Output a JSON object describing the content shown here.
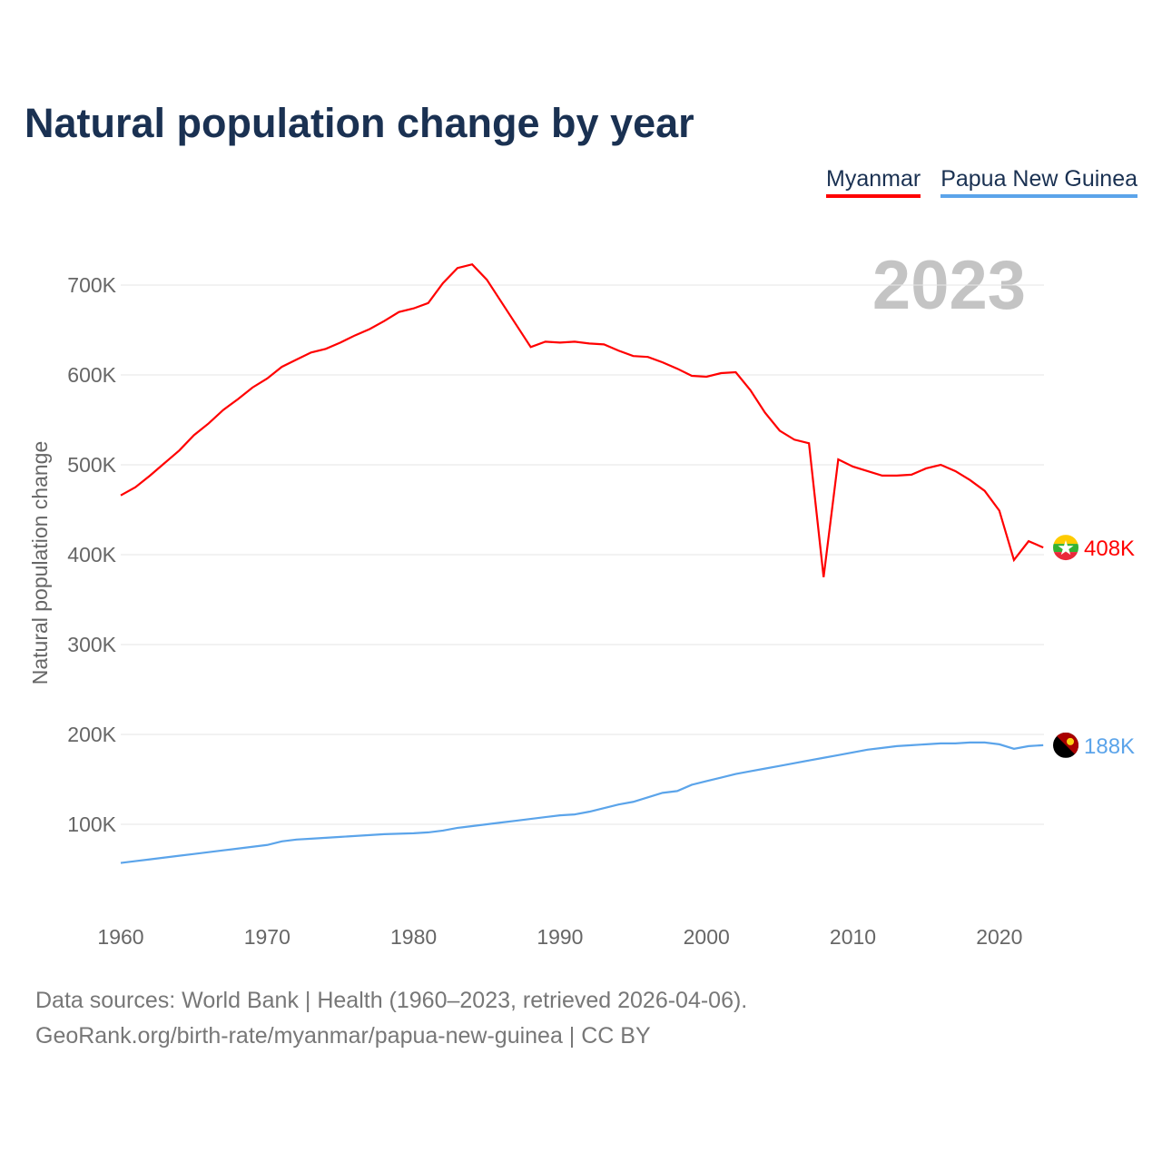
{
  "title": "Natural population change by year",
  "legend": [
    {
      "name": "Myanmar",
      "color": "#ff0000"
    },
    {
      "name": "Papua New Guinea",
      "color": "#5ba4ea"
    }
  ],
  "year_label": "2023",
  "footer": {
    "line1": "Data sources: World Bank | Health (1960–2023, retrieved 2026-04-06).",
    "line2": "GeoRank.org/birth-rate/myanmar/papua-new-guinea | CC BY"
  },
  "chart_data": {
    "type": "line",
    "title": "Natural population change by year",
    "xlabel": "",
    "ylabel": "Natural population change",
    "xlim": [
      1960,
      2023
    ],
    "ylim": [
      0,
      750000
    ],
    "xticks": [
      "1960",
      "1970",
      "1980",
      "1990",
      "2000",
      "2010",
      "2020"
    ],
    "yticks": [
      {
        "v": 100000,
        "label": "100K"
      },
      {
        "v": 200000,
        "label": "200K"
      },
      {
        "v": 300000,
        "label": "300K"
      },
      {
        "v": 400000,
        "label": "400K"
      },
      {
        "v": 500000,
        "label": "500K"
      },
      {
        "v": 600000,
        "label": "600K"
      },
      {
        "v": 700000,
        "label": "700K"
      }
    ],
    "x_start": 1960,
    "series": [
      {
        "name": "Myanmar",
        "color": "#ff0000",
        "end_label": "408K",
        "values": [
          466,
          475,
          488,
          502,
          516,
          533,
          546,
          561,
          573,
          586,
          596,
          609,
          617,
          625,
          629,
          636,
          644,
          651,
          660,
          670,
          674,
          680,
          702,
          719,
          723,
          706,
          681,
          656,
          631,
          637,
          636,
          637,
          635,
          634,
          627,
          621,
          620,
          614,
          607,
          599,
          598,
          602,
          603,
          583,
          558,
          538,
          528,
          524,
          375,
          506,
          498,
          493,
          488,
          488,
          489,
          496,
          500,
          493,
          483,
          471,
          449,
          394,
          415,
          408
        ]
      },
      {
        "name": "Papua New Guinea",
        "color": "#5ba4ea",
        "end_label": "188K",
        "values": [
          57,
          59,
          61,
          63,
          65,
          67,
          69,
          71,
          73,
          75,
          77,
          81,
          83,
          84,
          85,
          86,
          87,
          88,
          89,
          89.5,
          90,
          91,
          93,
          96,
          98,
          100,
          102,
          104,
          106,
          108,
          110,
          111,
          114,
          118,
          122,
          125,
          130,
          135,
          137,
          144,
          148,
          152,
          156,
          159,
          162,
          165,
          168,
          171,
          174,
          177,
          180,
          183,
          185,
          187,
          188,
          189,
          190,
          190,
          191,
          191,
          189,
          184,
          187,
          188
        ]
      }
    ],
    "value_unit": "thousands"
  }
}
